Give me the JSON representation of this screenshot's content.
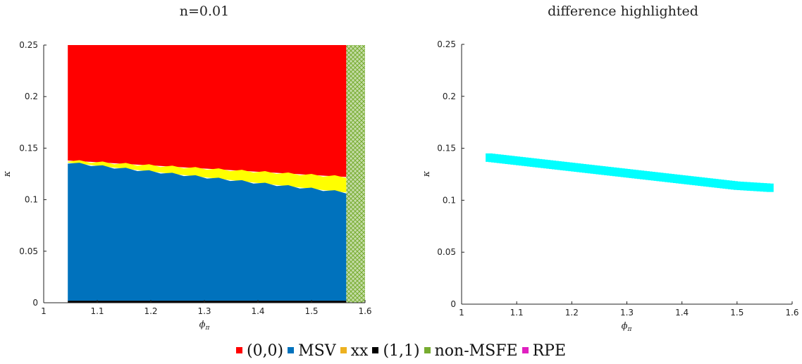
{
  "chart_data": [
    {
      "type": "scatter",
      "title": "n=0.01",
      "xlabel": "ϕπ",
      "ylabel": "κ",
      "xlim": [
        1,
        1.6
      ],
      "ylim": [
        0,
        0.25
      ],
      "xticks": [
        "1",
        "1.1",
        "1.2",
        "1.3",
        "1.4",
        "1.5",
        "1.6"
      ],
      "yticks": [
        "0",
        "0.05",
        "0.1",
        "0.15",
        "0.2",
        "0.25"
      ],
      "grid": false,
      "regions": [
        {
          "name": "(0,0)",
          "color": "#ff0000",
          "x_range": [
            1.045,
            1.565
          ],
          "y_lower": [
            [
              1.045,
              0.138
            ],
            [
              1.565,
              0.122
            ]
          ],
          "y_upper": 0.25
        },
        {
          "name": "xx",
          "color": "#ffff00",
          "x_range": [
            1.045,
            1.565
          ],
          "y_lower": [
            [
              1.045,
              0.136
            ],
            [
              1.565,
              0.107
            ]
          ],
          "y_upper": [
            [
              1.045,
              0.138
            ],
            [
              1.565,
              0.122
            ]
          ]
        },
        {
          "name": "MSV",
          "color": "#0072bd",
          "x_range": [
            1.045,
            1.565
          ],
          "y_lower": 0.002,
          "y_upper": [
            [
              1.045,
              0.136
            ],
            [
              1.565,
              0.107
            ]
          ]
        },
        {
          "name": "(1,1)",
          "color": "#000000",
          "x_range": [
            1.045,
            1.565
          ],
          "y_lower": 0,
          "y_upper": 0.002
        },
        {
          "name": "non-MSFE",
          "color": "#77ac30",
          "x_range": [
            1.565,
            1.6
          ],
          "y_lower": 0,
          "y_upper": 0.25
        }
      ]
    },
    {
      "type": "scatter",
      "title": "difference highlighted",
      "xlabel": "ϕπ",
      "ylabel": "κ",
      "xlim": [
        1,
        1.6
      ],
      "ylim": [
        0,
        0.25
      ],
      "xticks": [
        "1",
        "1.1",
        "1.2",
        "1.3",
        "1.4",
        "1.5",
        "1.6"
      ],
      "yticks": [
        "0",
        "0.05",
        "0.1",
        "0.15",
        "0.2",
        "0.25"
      ],
      "grid": false,
      "series": [
        {
          "color": "#00ffff",
          "x": [
            1.05,
            1.1,
            1.15,
            1.2,
            1.25,
            1.3,
            1.35,
            1.4,
            1.45,
            1.5,
            1.56
          ],
          "y": [
            0.141,
            0.138,
            0.135,
            0.132,
            0.129,
            0.126,
            0.123,
            0.12,
            0.117,
            0.114,
            0.112
          ]
        }
      ]
    }
  ],
  "legend": [
    {
      "label": "(0,0)",
      "color": "#ff0000"
    },
    {
      "label": "MSV",
      "color": "#0072bd"
    },
    {
      "label": "xx",
      "color": "#edb120"
    },
    {
      "label": "(1,1)",
      "color": "#000000"
    },
    {
      "label": "non-MSFE",
      "color": "#77ac30"
    },
    {
      "label": "RPE",
      "color": "#e020c0"
    }
  ]
}
